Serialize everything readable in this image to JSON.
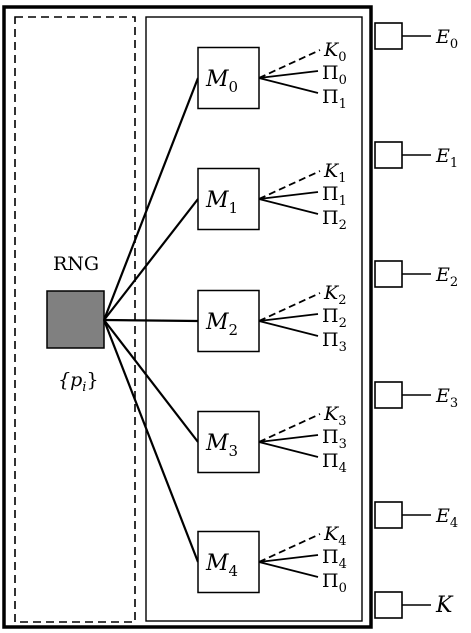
{
  "rng": {
    "label": "RNG",
    "prob_base": "{p",
    "prob_sub": "i",
    "prob_close": "}",
    "fill_color": "#808080"
  },
  "modules": [
    {
      "base": "M",
      "sub": "0",
      "key": {
        "base": "K",
        "sub": "0"
      },
      "outputs": [
        {
          "base": "Π",
          "sub": "0"
        },
        {
          "base": "Π",
          "sub": "1"
        }
      ]
    },
    {
      "base": "M",
      "sub": "1",
      "key": {
        "base": "K",
        "sub": "1"
      },
      "outputs": [
        {
          "base": "Π",
          "sub": "1"
        },
        {
          "base": "Π",
          "sub": "2"
        }
      ]
    },
    {
      "base": "M",
      "sub": "2",
      "key": {
        "base": "K",
        "sub": "2"
      },
      "outputs": [
        {
          "base": "Π",
          "sub": "2"
        },
        {
          "base": "Π",
          "sub": "3"
        }
      ]
    },
    {
      "base": "M",
      "sub": "3",
      "key": {
        "base": "K",
        "sub": "3"
      },
      "outputs": [
        {
          "base": "Π",
          "sub": "3"
        },
        {
          "base": "Π",
          "sub": "4"
        }
      ]
    },
    {
      "base": "M",
      "sub": "4",
      "key": {
        "base": "K",
        "sub": "4"
      },
      "outputs": [
        {
          "base": "Π",
          "sub": "4"
        },
        {
          "base": "Π",
          "sub": "0"
        }
      ]
    }
  ],
  "ports": [
    {
      "base": "E",
      "sub": "0"
    },
    {
      "base": "E",
      "sub": "1"
    },
    {
      "base": "E",
      "sub": "2"
    },
    {
      "base": "E",
      "sub": "3"
    },
    {
      "base": "E",
      "sub": "4"
    },
    {
      "base": "K",
      "sub": ""
    }
  ]
}
